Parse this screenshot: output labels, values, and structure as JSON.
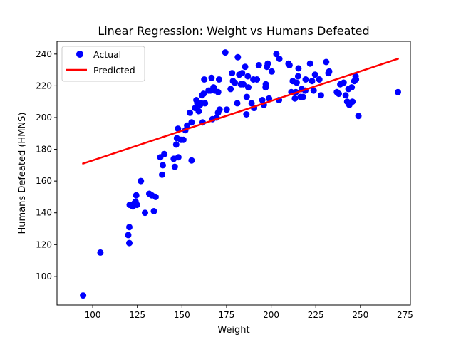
{
  "chart_data": {
    "type": "scatter",
    "title": "Linear Regression: Weight vs Humans Defeated",
    "xlabel": "Weight",
    "ylabel": "Humans Defeated (HMNS)",
    "xlim": [
      80,
      278
    ],
    "ylim": [
      82,
      248
    ],
    "xticks": [
      100,
      125,
      150,
      175,
      200,
      225,
      250,
      275
    ],
    "yticks": [
      100,
      120,
      140,
      160,
      180,
      200,
      220,
      240
    ],
    "grid": false,
    "legend_position": "top-left",
    "series": [
      {
        "name": "Actual",
        "kind": "scatter",
        "color": "#0000ff",
        "points": [
          [
            94.6,
            88
          ],
          [
            104.3,
            115
          ],
          [
            119.9,
            126
          ],
          [
            120.5,
            131
          ],
          [
            120.5,
            121
          ],
          [
            120.7,
            145
          ],
          [
            122.5,
            144
          ],
          [
            123.4,
            146
          ],
          [
            124,
            147
          ],
          [
            124.4,
            151
          ],
          [
            124.8,
            145
          ],
          [
            127,
            160
          ],
          [
            129.3,
            140
          ],
          [
            131.7,
            152
          ],
          [
            133.1,
            151
          ],
          [
            134.3,
            141
          ],
          [
            135.3,
            150
          ],
          [
            137.9,
            175
          ],
          [
            138.9,
            164
          ],
          [
            139.3,
            170
          ],
          [
            140.1,
            177
          ],
          [
            145.4,
            174
          ],
          [
            146,
            169
          ],
          [
            146.8,
            183
          ],
          [
            147.2,
            187
          ],
          [
            147.8,
            193
          ],
          [
            148,
            175
          ],
          [
            149.4,
            186
          ],
          [
            150.8,
            186
          ],
          [
            151.9,
            192
          ],
          [
            152.9,
            195
          ],
          [
            154.5,
            203
          ],
          [
            155.4,
            173
          ],
          [
            155.4,
            197
          ],
          [
            157.4,
            206
          ],
          [
            158.1,
            211
          ],
          [
            158.6,
            209
          ],
          [
            159.4,
            204
          ],
          [
            160.1,
            208
          ],
          [
            160.8,
            209
          ],
          [
            161.3,
            214
          ],
          [
            161.6,
            197
          ],
          [
            162.1,
            215
          ],
          [
            162.5,
            224
          ],
          [
            162.9,
            209
          ],
          [
            164.9,
            217
          ],
          [
            165.9,
            217
          ],
          [
            166.6,
            225
          ],
          [
            167.1,
            199
          ],
          [
            167.7,
            219
          ],
          [
            168.4,
            217
          ],
          [
            169.4,
            200
          ],
          [
            170.2,
            203
          ],
          [
            170.3,
            216
          ],
          [
            170.8,
            224
          ],
          [
            171.1,
            205
          ],
          [
            174.3,
            241
          ],
          [
            175.1,
            205
          ],
          [
            177.3,
            218
          ],
          [
            178.1,
            228
          ],
          [
            178.6,
            223
          ],
          [
            179.6,
            222
          ],
          [
            181,
            209
          ],
          [
            181.3,
            238
          ],
          [
            182.1,
            227
          ],
          [
            183,
            221
          ],
          [
            183.7,
            228
          ],
          [
            184.4,
            221
          ],
          [
            185.4,
            232
          ],
          [
            186.1,
            202
          ],
          [
            186.3,
            213
          ],
          [
            186.9,
            226
          ],
          [
            187.2,
            219
          ],
          [
            189,
            209
          ],
          [
            190,
            224
          ],
          [
            190.4,
            206
          ],
          [
            192,
            224
          ],
          [
            193.1,
            233
          ],
          [
            195,
            211
          ],
          [
            195.9,
            208
          ],
          [
            196.9,
            219
          ],
          [
            197,
            221
          ],
          [
            197.6,
            232
          ],
          [
            198.1,
            234
          ],
          [
            198.8,
            212
          ],
          [
            200.3,
            229
          ],
          [
            202.9,
            240
          ],
          [
            204.4,
            211
          ],
          [
            204.6,
            237
          ],
          [
            209.7,
            234
          ],
          [
            210.3,
            233
          ],
          [
            211.3,
            216
          ],
          [
            212.1,
            223
          ],
          [
            213.3,
            212
          ],
          [
            213.8,
            216
          ],
          [
            214.3,
            222
          ],
          [
            215.1,
            226
          ],
          [
            215.3,
            231
          ],
          [
            216.5,
            213
          ],
          [
            217.1,
            218
          ],
          [
            217.9,
            213
          ],
          [
            219.1,
            217
          ],
          [
            219.3,
            224
          ],
          [
            221.8,
            234
          ],
          [
            222.9,
            223
          ],
          [
            223.8,
            217
          ],
          [
            224.6,
            227
          ],
          [
            227,
            224
          ],
          [
            227.9,
            214
          ],
          [
            230.8,
            235
          ],
          [
            232.1,
            228
          ],
          [
            232.5,
            229
          ],
          [
            236.8,
            216
          ],
          [
            237.9,
            215
          ],
          [
            238.7,
            221
          ],
          [
            240.6,
            222
          ],
          [
            241.7,
            214
          ],
          [
            242.6,
            210
          ],
          [
            243.3,
            218
          ],
          [
            243.8,
            208
          ],
          [
            245.1,
            219
          ],
          [
            245.5,
            210
          ],
          [
            246.6,
            223
          ],
          [
            247.3,
            226
          ],
          [
            247.5,
            224
          ],
          [
            248.9,
            201
          ],
          [
            271,
            216
          ]
        ]
      },
      {
        "name": "Predicted",
        "kind": "line",
        "color": "#ff0000",
        "points": [
          [
            94.6,
            171
          ],
          [
            271,
            237
          ]
        ]
      }
    ]
  }
}
